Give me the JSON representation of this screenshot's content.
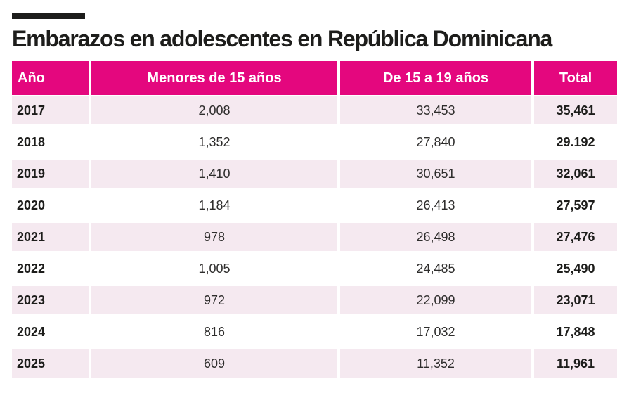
{
  "title": "Embarazos en adolescentes en República Dominicana",
  "colors": {
    "header_bg": "#e4077e",
    "stripe_bg": "#f5e9f0",
    "kicker_bar": "#1d1d1b",
    "title_color": "#1d1d1b",
    "body_text": "#2e2d2c"
  },
  "table": {
    "columns": [
      "Año",
      "Menores de 15 años",
      "De 15 a 19 años",
      "Total"
    ],
    "rows": [
      {
        "year": "2017",
        "under15": "2,008",
        "from15to19": "33,453",
        "total": "35,461"
      },
      {
        "year": "2018",
        "under15": "1,352",
        "from15to19": "27,840",
        "total": "29.192"
      },
      {
        "year": "2019",
        "under15": "1,410",
        "from15to19": "30,651",
        "total": "32,061"
      },
      {
        "year": "2020",
        "under15": "1,184",
        "from15to19": "26,413",
        "total": "27,597"
      },
      {
        "year": "2021",
        "under15": "978",
        "from15to19": "26,498",
        "total": "27,476"
      },
      {
        "year": "2022",
        "under15": "1,005",
        "from15to19": "24,485",
        "total": "25,490"
      },
      {
        "year": "2023",
        "under15": "972",
        "from15to19": "22,099",
        "total": "23,071"
      },
      {
        "year": "2024",
        "under15": "816",
        "from15to19": "17,032",
        "total": "17,848"
      },
      {
        "year": "2025",
        "under15": "609",
        "from15to19": "11,352",
        "total": "11,961"
      }
    ]
  },
  "chart_data": {
    "type": "table",
    "title": "Embarazos en adolescentes en República Dominicana",
    "columns": [
      "Año",
      "Menores de 15 años",
      "De 15 a 19 años",
      "Total"
    ],
    "categories": [
      "2017",
      "2018",
      "2019",
      "2020",
      "2021",
      "2022",
      "2023",
      "2024",
      "2025"
    ],
    "series": [
      {
        "name": "Menores de 15 años",
        "values": [
          2008,
          1352,
          1410,
          1184,
          978,
          1005,
          972,
          816,
          609
        ]
      },
      {
        "name": "De 15 a 19 años",
        "values": [
          33453,
          27840,
          30651,
          26413,
          26498,
          24485,
          22099,
          17032,
          11352
        ]
      },
      {
        "name": "Total",
        "values": [
          35461,
          29192,
          32061,
          27597,
          27476,
          25490,
          23071,
          17848,
          11961
        ]
      }
    ],
    "layout": {
      "zebra_striping": true,
      "header_color": "#e4077e",
      "stripe_color": "#f5e9f0"
    }
  }
}
